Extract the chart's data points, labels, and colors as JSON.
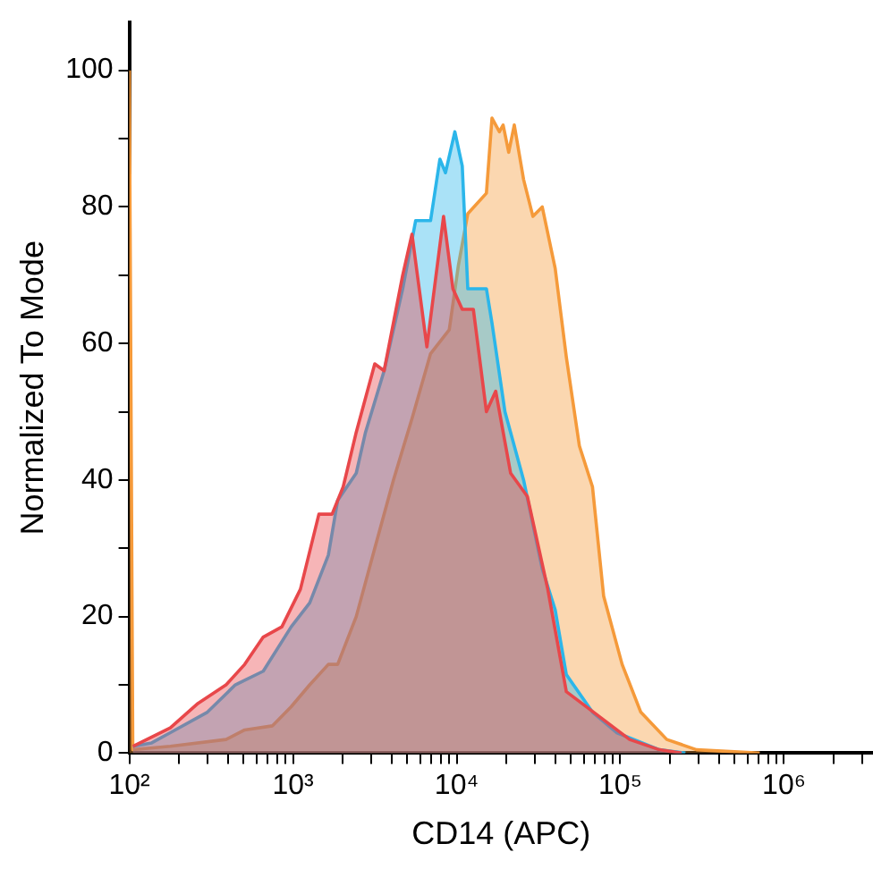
{
  "chart_data": {
    "type": "area",
    "xlabel": "CD14 (APC)",
    "ylabel": "Normalized To Mode",
    "log": "x",
    "legend": false,
    "grid": false,
    "xlim": [
      100,
      3500000
    ],
    "xticks": [
      {
        "value": 100,
        "label": "10²"
      },
      {
        "value": 200,
        "label": null
      },
      {
        "value": 300,
        "label": null
      },
      {
        "value": 400,
        "label": null
      },
      {
        "value": 500,
        "label": null
      },
      {
        "value": 600,
        "label": null
      },
      {
        "value": 700,
        "label": null
      },
      {
        "value": 800,
        "label": null
      },
      {
        "value": 900,
        "label": null
      },
      {
        "value": 1000,
        "label": "10³"
      },
      {
        "value": 2000,
        "label": null
      },
      {
        "value": 3000,
        "label": null
      },
      {
        "value": 4000,
        "label": null
      },
      {
        "value": 5000,
        "label": null
      },
      {
        "value": 6000,
        "label": null
      },
      {
        "value": 7000,
        "label": null
      },
      {
        "value": 8000,
        "label": null
      },
      {
        "value": 9000,
        "label": null
      },
      {
        "value": 10000,
        "label": "10⁴"
      },
      {
        "value": 20000,
        "label": null
      },
      {
        "value": 30000,
        "label": null
      },
      {
        "value": 40000,
        "label": null
      },
      {
        "value": 50000,
        "label": null
      },
      {
        "value": 60000,
        "label": null
      },
      {
        "value": 70000,
        "label": null
      },
      {
        "value": 80000,
        "label": null
      },
      {
        "value": 90000,
        "label": null
      },
      {
        "value": 100000,
        "label": "10⁵"
      },
      {
        "value": 200000,
        "label": null
      },
      {
        "value": 300000,
        "label": null
      },
      {
        "value": 400000,
        "label": null
      },
      {
        "value": 500000,
        "label": null
      },
      {
        "value": 600000,
        "label": null
      },
      {
        "value": 700000,
        "label": null
      },
      {
        "value": 800000,
        "label": null
      },
      {
        "value": 900000,
        "label": null
      },
      {
        "value": 1000000,
        "label": "10⁶"
      },
      {
        "value": 2000000,
        "label": null
      },
      {
        "value": 3000000,
        "label": null
      }
    ],
    "ylim": [
      0,
      107
    ],
    "yticks": [
      0,
      {
        "value": 10,
        "label": null
      },
      20,
      {
        "value": 30,
        "label": null
      },
      40,
      {
        "value": 50,
        "label": null
      },
      60,
      {
        "value": 70,
        "label": null
      },
      80,
      {
        "value": 90,
        "label": null
      },
      100
    ],
    "series": [
      {
        "color": "#e8474a",
        "x": [
          105,
          178,
          263,
          390,
          507,
          658,
          855,
          1110,
          1440,
          1733,
          2027,
          2435,
          3160,
          3605,
          4680,
          5335,
          6580,
          8320,
          9490,
          10820,
          12650,
          15200,
          17330,
          21370,
          27040,
          36060,
          46800,
          73100,
          114000,
          173400,
          237100
        ],
        "values": [
          1,
          3.7,
          7.3,
          10,
          13,
          17,
          18.5,
          24,
          35,
          35,
          39,
          47,
          57,
          56,
          70,
          76,
          59.5,
          78.6,
          68,
          65,
          65,
          50,
          53,
          41,
          37.6,
          24,
          9,
          5.5,
          2,
          0.5,
          0
        ]
      },
      {
        "color": "#2bb6ea",
        "x": [
          105,
          137,
          178,
          300,
          444,
          658,
          975,
          1265,
          1645,
          1875,
          2435,
          2775,
          3605,
          4680,
          5620,
          6930,
          7900,
          8550,
          9750,
          10820,
          11700,
          15200,
          16440,
          19730,
          25650,
          33340,
          40000,
          46800,
          67600,
          94900,
          173400,
          250000
        ],
        "values": [
          1,
          1.5,
          3,
          6,
          10,
          12,
          18.5,
          22,
          29,
          37,
          41,
          47,
          56,
          68,
          78,
          78,
          87,
          85,
          91,
          86,
          68,
          68,
          63,
          50,
          40,
          27,
          21,
          11.5,
          6,
          3,
          0.5,
          0
        ]
      },
      {
        "color": "#f59a3a",
        "x": [
          100,
          105,
          178,
          390,
          507,
          750,
          975,
          1265,
          1645,
          1875,
          2435,
          3160,
          4110,
          5335,
          6930,
          9010,
          10260,
          11700,
          15200,
          16440,
          18250,
          19230,
          20800,
          22500,
          25650,
          29240,
          33340,
          40000,
          46800,
          56230,
          67600,
          79100,
          102600,
          133400,
          192300,
          292400,
          711000
        ],
        "values": [
          100,
          0.5,
          1,
          2,
          3.4,
          4,
          6.8,
          10,
          13,
          13,
          20,
          30,
          40,
          49,
          58.5,
          62,
          71.5,
          79,
          82,
          93,
          91,
          92,
          88,
          92,
          84,
          78.6,
          80,
          71,
          58,
          45,
          39,
          23,
          13,
          6,
          2,
          0.5,
          0
        ]
      }
    ]
  }
}
